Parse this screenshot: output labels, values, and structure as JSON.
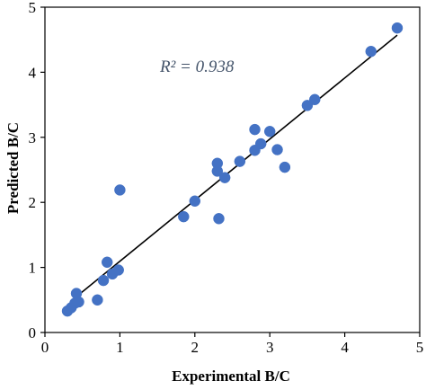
{
  "chart_data": {
    "type": "scatter",
    "title": "",
    "xlabel": "Experimental B/C",
    "ylabel": "Predicted B/C",
    "xlim": [
      0,
      5
    ],
    "ylim": [
      0,
      5
    ],
    "xticks": [
      "0",
      "1",
      "2",
      "3",
      "4",
      "5"
    ],
    "yticks": [
      "0",
      "1",
      "2",
      "3",
      "4",
      "5"
    ],
    "grid": false,
    "legend": "none",
    "annotation": "R² = 0.938",
    "point_color": "#4472c4",
    "line_color": "#000000",
    "points": [
      {
        "x": 0.3,
        "y": 0.33
      },
      {
        "x": 0.35,
        "y": 0.38
      },
      {
        "x": 0.4,
        "y": 0.45
      },
      {
        "x": 0.42,
        "y": 0.6
      },
      {
        "x": 0.45,
        "y": 0.47
      },
      {
        "x": 0.7,
        "y": 0.5
      },
      {
        "x": 0.78,
        "y": 0.8
      },
      {
        "x": 0.83,
        "y": 1.08
      },
      {
        "x": 0.9,
        "y": 0.9
      },
      {
        "x": 0.98,
        "y": 0.96
      },
      {
        "x": 1.0,
        "y": 2.19
      },
      {
        "x": 1.85,
        "y": 1.78
      },
      {
        "x": 2.0,
        "y": 2.02
      },
      {
        "x": 2.3,
        "y": 2.6
      },
      {
        "x": 2.3,
        "y": 2.48
      },
      {
        "x": 2.32,
        "y": 1.75
      },
      {
        "x": 2.4,
        "y": 2.38
      },
      {
        "x": 2.6,
        "y": 2.63
      },
      {
        "x": 2.8,
        "y": 3.12
      },
      {
        "x": 2.8,
        "y": 2.8
      },
      {
        "x": 2.88,
        "y": 2.9
      },
      {
        "x": 3.0,
        "y": 3.09
      },
      {
        "x": 3.1,
        "y": 2.81
      },
      {
        "x": 3.2,
        "y": 2.54
      },
      {
        "x": 3.5,
        "y": 3.49
      },
      {
        "x": 3.6,
        "y": 3.58
      },
      {
        "x": 4.35,
        "y": 4.32
      },
      {
        "x": 4.7,
        "y": 4.68
      }
    ],
    "fit_line": {
      "x": [
        0.42,
        4.7
      ],
      "y": [
        0.55,
        4.57
      ]
    }
  }
}
